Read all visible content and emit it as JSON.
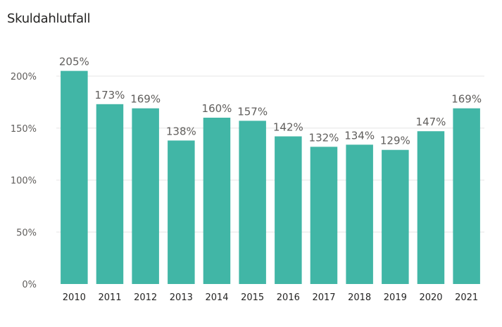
{
  "chart_data": {
    "type": "bar",
    "title": "Skuldahlutfall",
    "xlabel": "",
    "ylabel": "",
    "categories": [
      "2010",
      "2011",
      "2012",
      "2013",
      "2014",
      "2015",
      "2016",
      "2017",
      "2018",
      "2019",
      "2020",
      "2021"
    ],
    "values": [
      205,
      173,
      169,
      138,
      160,
      157,
      142,
      132,
      134,
      129,
      147,
      169
    ],
    "data_labels": [
      "205%",
      "173%",
      "169%",
      "138%",
      "160%",
      "157%",
      "142%",
      "132%",
      "134%",
      "129%",
      "147%",
      "169%"
    ],
    "ylim": [
      0,
      230
    ],
    "yticks": [
      0,
      50,
      100,
      150,
      200
    ],
    "ytick_labels": [
      "0%",
      "50%",
      "100%",
      "150%",
      "200%"
    ],
    "grid": true,
    "legend": "none",
    "colors": {
      "bar": "#41b6a6",
      "grid": "#e6e6e6"
    }
  }
}
